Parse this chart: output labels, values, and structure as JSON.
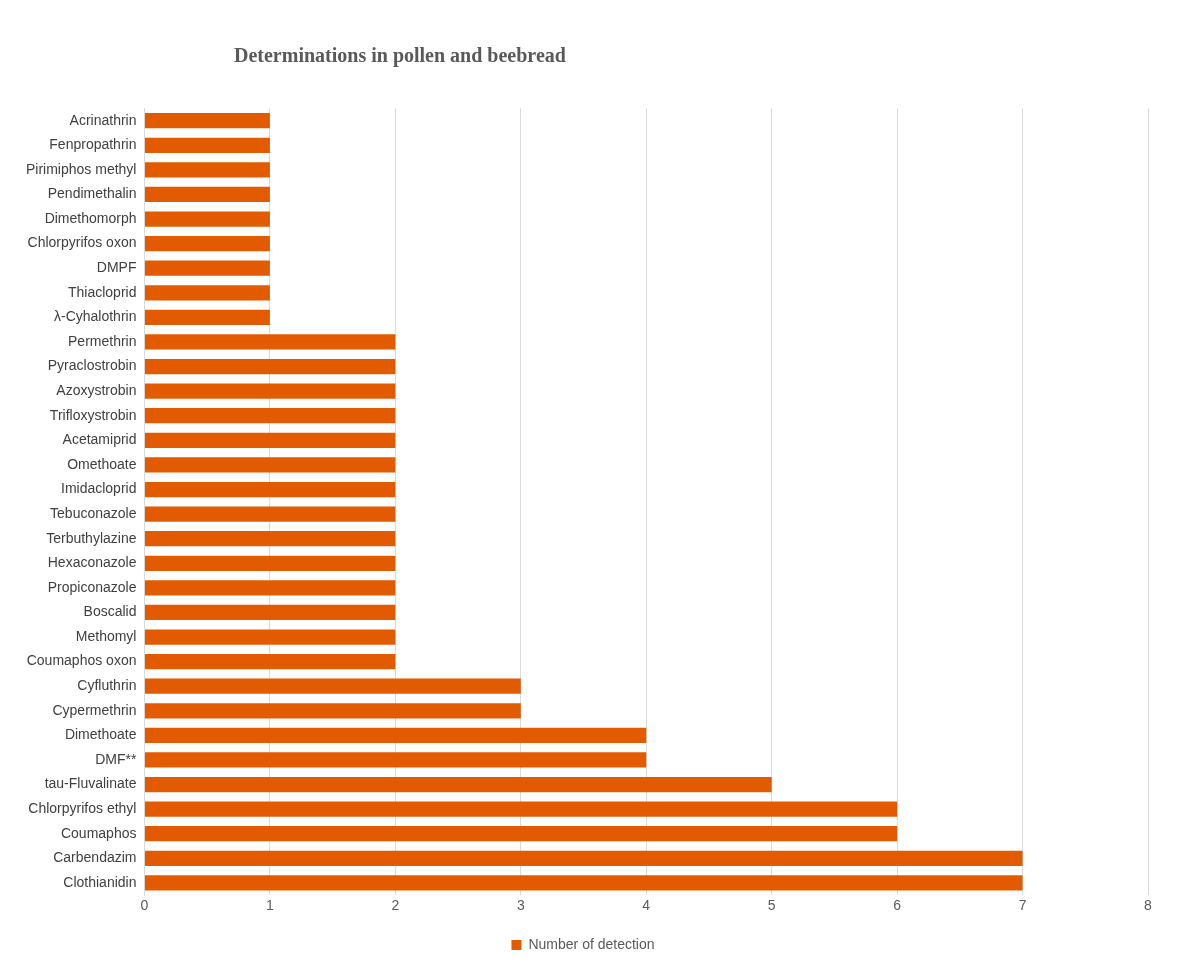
{
  "chart_data": {
    "type": "bar",
    "orientation": "horizontal",
    "title": "Determinations in pollen and beebread",
    "categories": [
      "Acrinathrin",
      "Fenpropathrin",
      "Pirimiphos methyl",
      "Pendimethalin",
      "Dimethomorph",
      "Chlorpyrifos oxon",
      "DMPF",
      "Thiacloprid",
      "λ-Cyhalothrin",
      "Permethrin",
      "Pyraclostrobin",
      "Azoxystrobin",
      "Trifloxystrobin",
      "Acetamiprid",
      "Omethoate",
      "Imidacloprid",
      "Tebuconazole",
      "Terbuthylazine",
      "Hexaconazole",
      "Propiconazole",
      "Boscalid",
      "Methomyl",
      "Coumaphos oxon",
      "Cyfluthrin",
      "Cypermethrin",
      "Dimethoate",
      "DMF**",
      "tau-Fluvalinate",
      "Chlorpyrifos ethyl",
      "Coumaphos",
      "Carbendazim",
      "Clothianidin"
    ],
    "series": [
      {
        "name": "Number of detection",
        "color": "#e35b00",
        "values": [
          1,
          1,
          1,
          1,
          1,
          1,
          1,
          1,
          1,
          2,
          2,
          2,
          2,
          2,
          2,
          2,
          2,
          2,
          2,
          2,
          2,
          2,
          2,
          3,
          3,
          4,
          4,
          5,
          6,
          6,
          7,
          7
        ]
      }
    ],
    "xlim": [
      0,
      8
    ],
    "xticks": [
      0,
      1,
      2,
      3,
      4,
      5,
      6,
      7,
      8
    ],
    "grid": "x",
    "legend": "bottom"
  }
}
